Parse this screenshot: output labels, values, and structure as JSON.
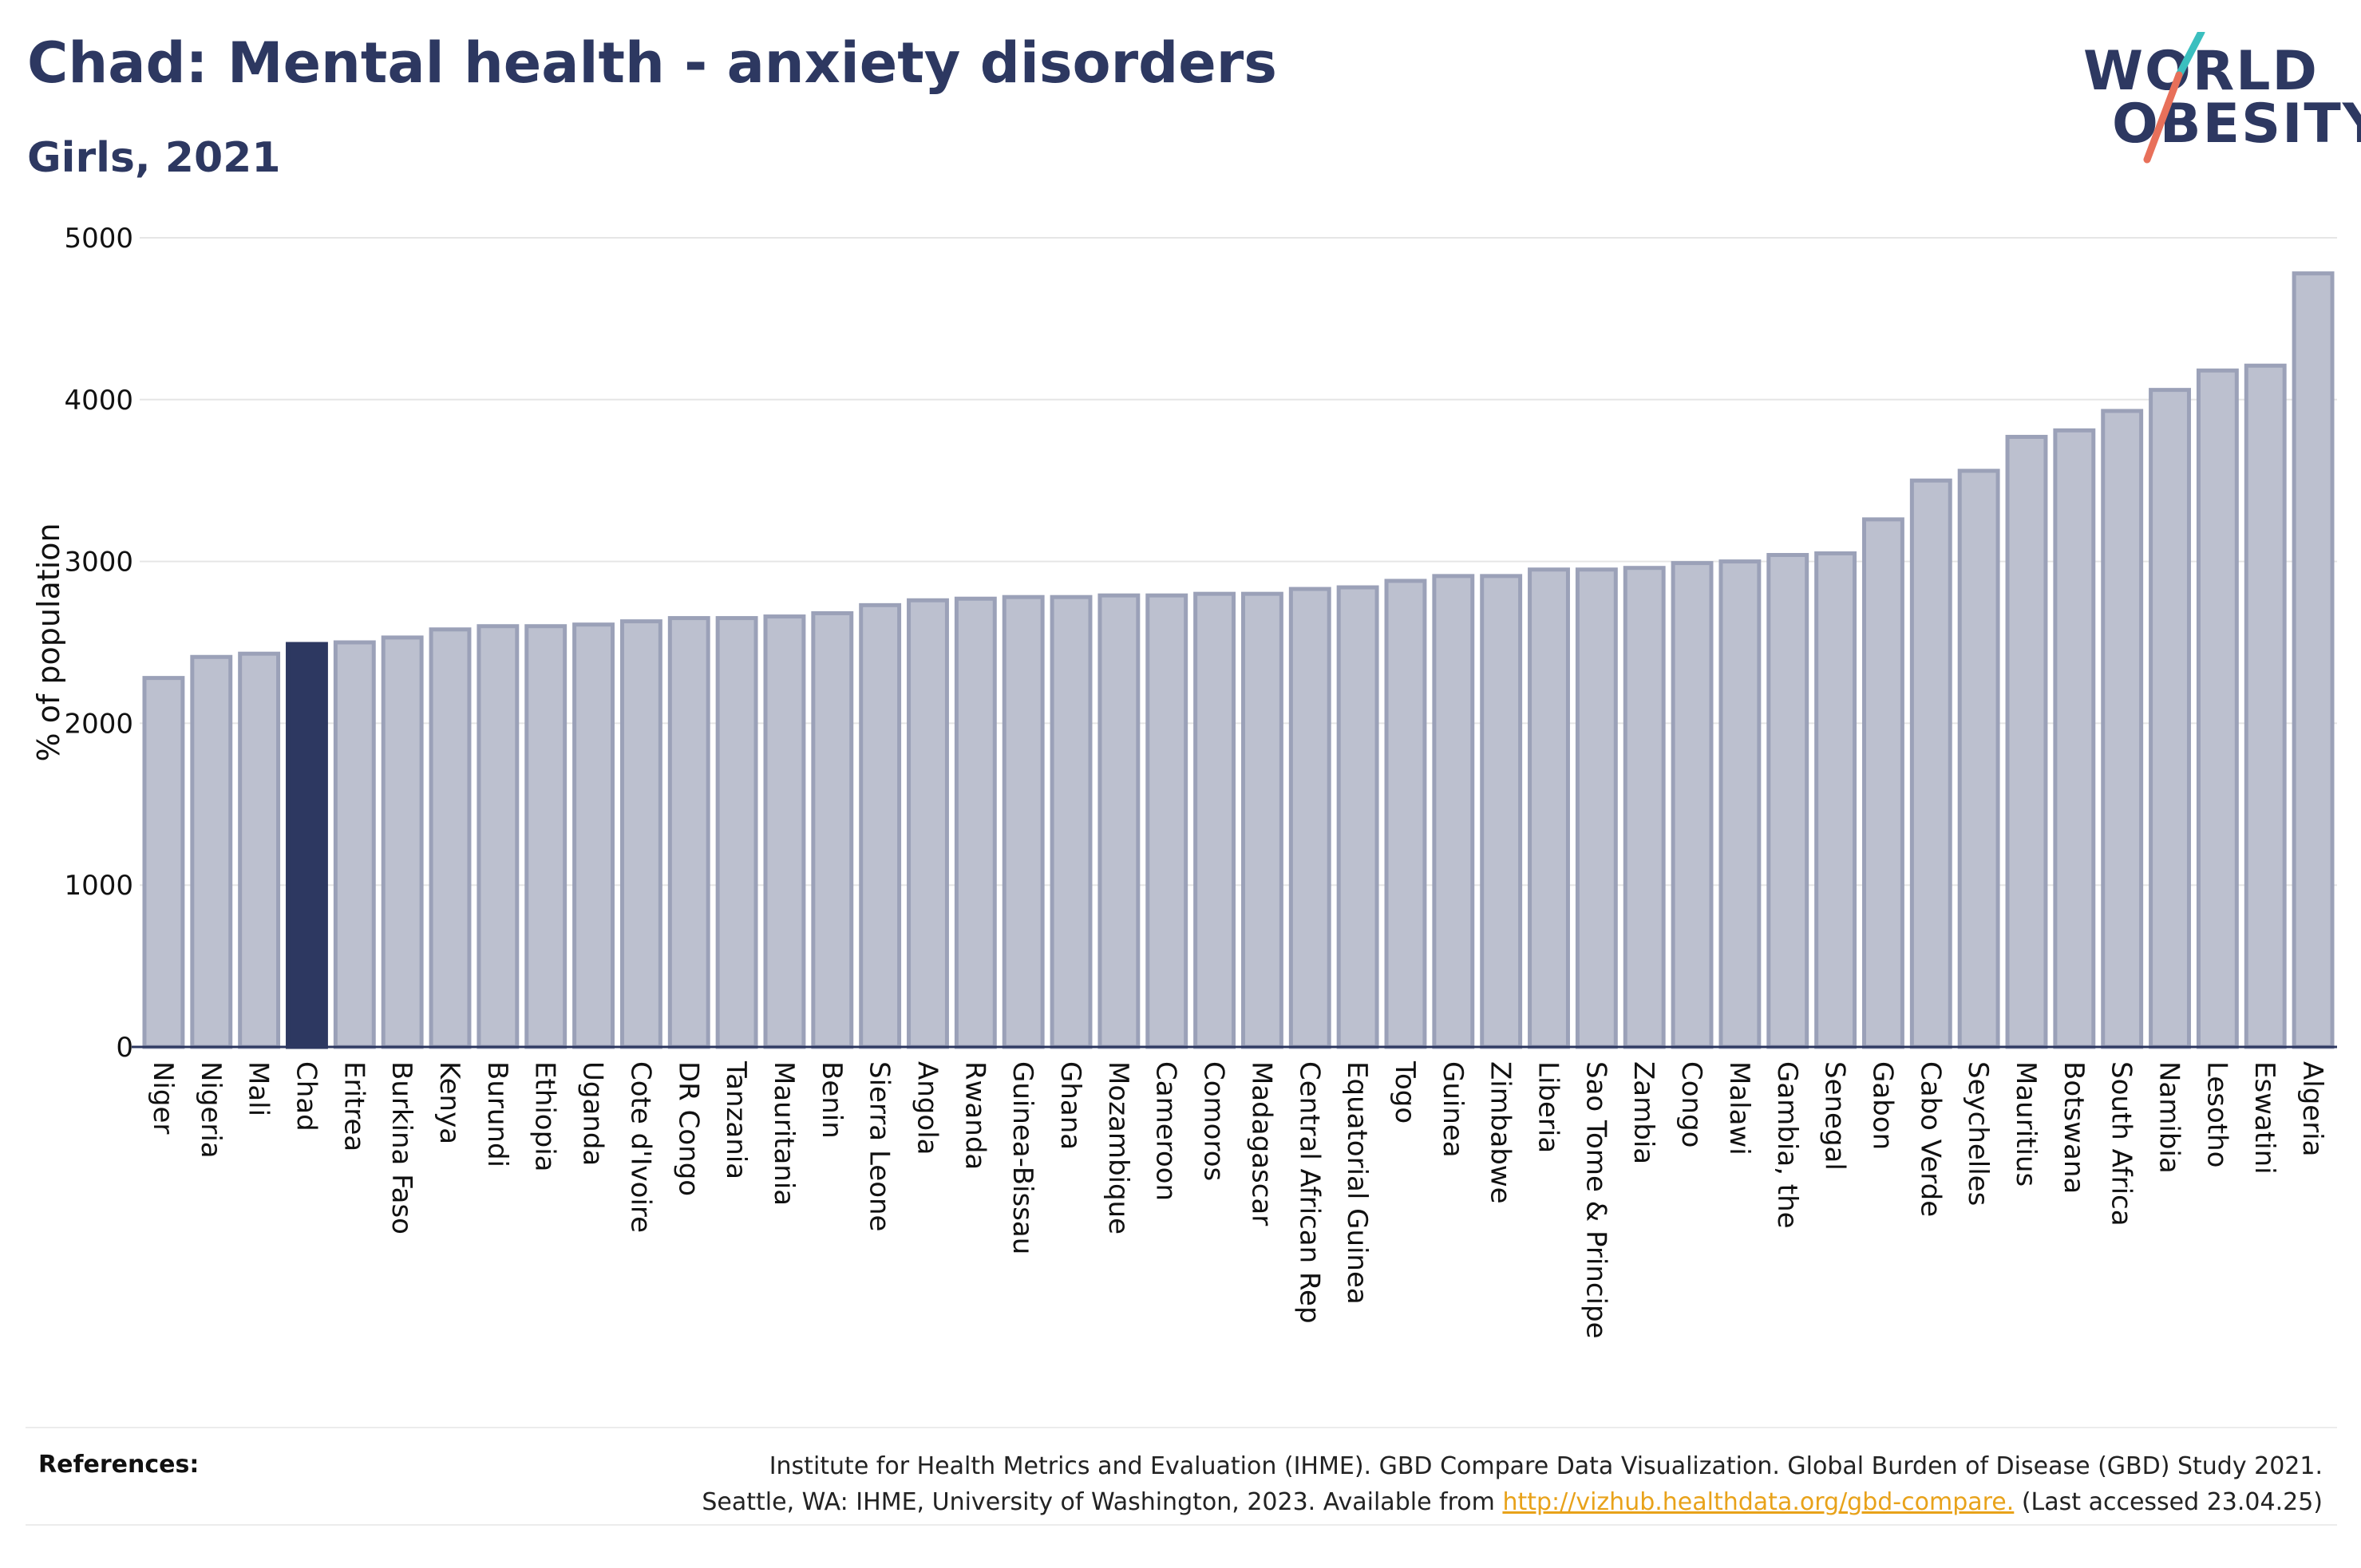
{
  "header": {
    "title": "Chad: Mental health - anxiety disorders",
    "subtitle": "Girls, 2021"
  },
  "logo": {
    "line1": "WORLD",
    "line2": "OBESITY",
    "slash_color_top": "#3bbfbf",
    "slash_color_bottom": "#e8705a"
  },
  "colors": {
    "highlight_bar": "#2d3861",
    "default_bar": "#bcc0cf",
    "default_bar_border": "#9ba1b8",
    "link": "#e8a21a"
  },
  "references": {
    "label": "References:",
    "line1": "Institute for Health Metrics and Evaluation (IHME). GBD Compare Data Visualization. Global Burden of Disease (GBD) Study 2021.",
    "line2_prefix": "Seattle, WA: IHME, University of Washington, 2023. Available from",
    "link": "http://vizhub.healthdata.org/gbd-compare.",
    "line2_suffix": "(Last accessed 23.04.25)"
  },
  "chart_data": {
    "type": "bar",
    "title": "Chad: Mental health - anxiety disorders",
    "subtitle": "Girls, 2021",
    "xlabel": "",
    "ylabel": "% of population",
    "ylim": [
      0,
      5000
    ],
    "yticks": [
      0,
      1000,
      2000,
      3000,
      4000,
      5000
    ],
    "grid": true,
    "highlight": "Chad",
    "categories": [
      "Niger",
      "Nigeria",
      "Mali",
      "Chad",
      "Eritrea",
      "Burkina Faso",
      "Kenya",
      "Burundi",
      "Ethiopia",
      "Uganda",
      "Cote d'Ivoire",
      "DR Congo",
      "Tanzania",
      "Mauritania",
      "Benin",
      "Sierra Leone",
      "Angola",
      "Rwanda",
      "Guinea-Bissau",
      "Ghana",
      "Mozambique",
      "Cameroon",
      "Comoros",
      "Madagascar",
      "Central African Rep",
      "Equatorial Guinea",
      "Togo",
      "Guinea",
      "Zimbabwe",
      "Liberia",
      "Sao Tome & Principe",
      "Zambia",
      "Congo",
      "Malawi",
      "Gambia, the",
      "Senegal",
      "Gabon",
      "Cabo Verde",
      "Seychelles",
      "Mauritius",
      "Botswana",
      "South Africa",
      "Namibia",
      "Lesotho",
      "Eswatini",
      "Algeria"
    ],
    "values": [
      2280,
      2410,
      2430,
      2490,
      2500,
      2530,
      2580,
      2600,
      2600,
      2610,
      2630,
      2650,
      2650,
      2660,
      2680,
      2730,
      2760,
      2770,
      2780,
      2780,
      2790,
      2790,
      2800,
      2800,
      2830,
      2840,
      2880,
      2910,
      2910,
      2950,
      2950,
      2960,
      2990,
      3000,
      3040,
      3050,
      3260,
      3500,
      3560,
      3770,
      3810,
      3930,
      4060,
      4180,
      4210,
      4780
    ]
  }
}
